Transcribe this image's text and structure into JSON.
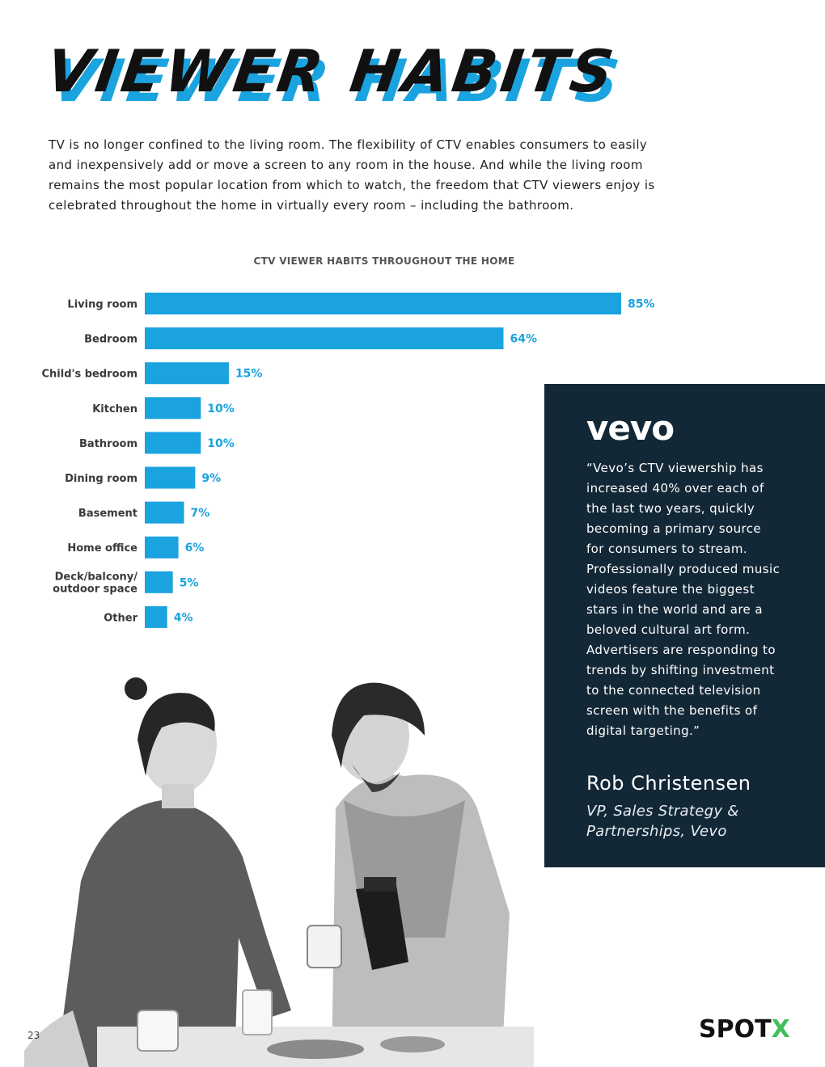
{
  "header": {
    "title": "VIEWER HABITS"
  },
  "intro": "TV is no longer confined to the living room. The flexibility of CTV enables consumers to easily and inexpensively add or move a screen to any room in the house. And while the living room remains the most popular location from which to watch, the freedom that CTV viewers enjoy is celebrated throughout the home in virtually every room – including the bathroom.",
  "chart_data": {
    "type": "bar",
    "orientation": "horizontal",
    "title": "CTV VIEWER HABITS THROUGHOUT THE HOME",
    "categories": [
      "Living room",
      "Bedroom",
      "Child's bedroom",
      "Kitchen",
      "Bathroom",
      "Dining room",
      "Basement",
      "Home office",
      "Deck/balcony/ outdoor space",
      "Other"
    ],
    "values": [
      85,
      64,
      15,
      10,
      10,
      9,
      7,
      6,
      5,
      4
    ],
    "value_labels": [
      "85%",
      "64%",
      "15%",
      "10%",
      "10%",
      "9%",
      "7%",
      "6%",
      "5%",
      "4%"
    ],
    "xlim": [
      0,
      85
    ],
    "unit": "%",
    "color": "#1aa3df"
  },
  "quote": {
    "logo_text": "vevo",
    "text": "“Vevo’s CTV viewership has increased 40% over each of the last two years, quickly becoming a primary source for consumers to stream. Professionally produced music videos feature the biggest stars in the world and are a beloved cultural art form. Advertisers are responding to trends by shifting investment to the connected television screen with the benefits of digital targeting.”",
    "author": "Rob Christensen",
    "role": "VP, Sales Strategy & Partnerships, Vevo"
  },
  "footer": {
    "page_number": "23",
    "brand_main": "SPOT",
    "brand_accent": "X"
  },
  "colors": {
    "accent": "#1aa3df",
    "panel": "#132837",
    "brand_x": "#3fbf5a"
  }
}
